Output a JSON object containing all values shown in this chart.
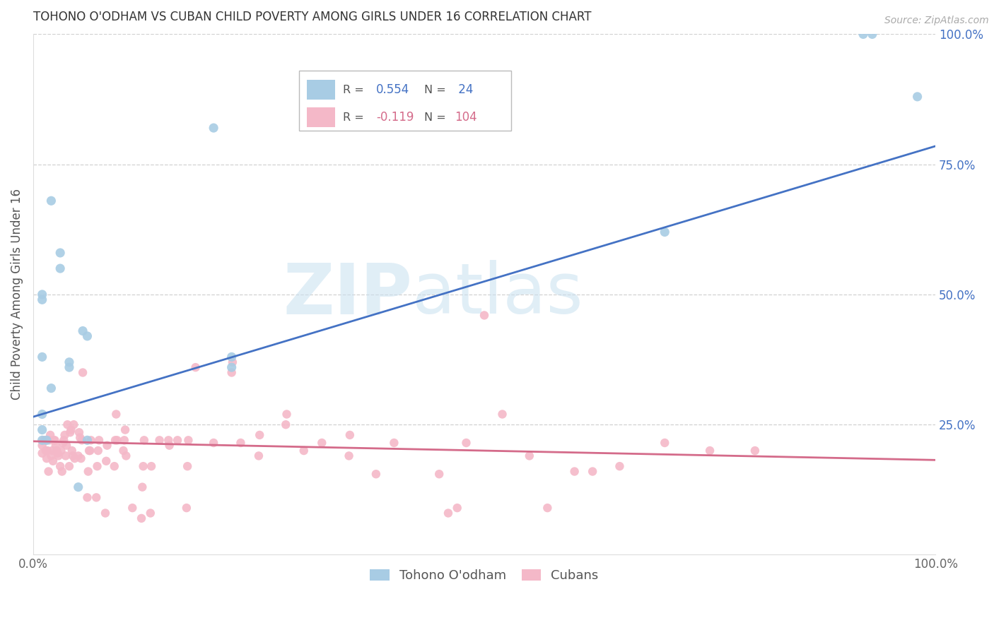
{
  "title": "TOHONO O'ODHAM VS CUBAN CHILD POVERTY AMONG GIRLS UNDER 16 CORRELATION CHART",
  "source": "Source: ZipAtlas.com",
  "ylabel": "Child Poverty Among Girls Under 16",
  "watermark": "ZIPatlas",
  "legend_label_blue": "Tohono O'odham",
  "legend_label_pink": "Cubans",
  "blue_color": "#a8cce4",
  "blue_line_color": "#4472c4",
  "pink_color": "#f4b8c8",
  "pink_line_color": "#d46b8a",
  "background_color": "#ffffff",
  "grid_color": "#cccccc",
  "xlim": [
    0,
    1
  ],
  "ylim": [
    0,
    1
  ],
  "xticks": [
    0.0,
    0.25,
    0.5,
    0.75,
    1.0
  ],
  "xticklabels": [
    "0.0%",
    "",
    "",
    "",
    "100.0%"
  ],
  "yticks_right": [
    0.25,
    0.5,
    0.75,
    1.0
  ],
  "yticklabels_right": [
    "25.0%",
    "50.0%",
    "75.0%",
    "100.0%"
  ],
  "blue_points": [
    [
      0.01,
      0.27
    ],
    [
      0.01,
      0.24
    ],
    [
      0.01,
      0.5
    ],
    [
      0.01,
      0.49
    ],
    [
      0.01,
      0.38
    ],
    [
      0.01,
      0.22
    ],
    [
      0.015,
      0.22
    ],
    [
      0.02,
      0.68
    ],
    [
      0.02,
      0.32
    ],
    [
      0.03,
      0.58
    ],
    [
      0.03,
      0.55
    ],
    [
      0.04,
      0.37
    ],
    [
      0.04,
      0.36
    ],
    [
      0.05,
      0.13
    ],
    [
      0.055,
      0.43
    ],
    [
      0.06,
      0.42
    ],
    [
      0.06,
      0.22
    ],
    [
      0.2,
      0.82
    ],
    [
      0.22,
      0.36
    ],
    [
      0.22,
      0.38
    ],
    [
      0.7,
      0.62
    ],
    [
      0.92,
      1.0
    ],
    [
      0.93,
      1.0
    ],
    [
      0.98,
      0.88
    ]
  ],
  "pink_points": [
    [
      0.01,
      0.195
    ],
    [
      0.01,
      0.21
    ],
    [
      0.012,
      0.22
    ],
    [
      0.013,
      0.22
    ],
    [
      0.014,
      0.2
    ],
    [
      0.015,
      0.185
    ],
    [
      0.016,
      0.2
    ],
    [
      0.017,
      0.16
    ],
    [
      0.018,
      0.22
    ],
    [
      0.019,
      0.23
    ],
    [
      0.02,
      0.19
    ],
    [
      0.021,
      0.2
    ],
    [
      0.022,
      0.18
    ],
    [
      0.023,
      0.22
    ],
    [
      0.024,
      0.22
    ],
    [
      0.025,
      0.21
    ],
    [
      0.026,
      0.2
    ],
    [
      0.027,
      0.195
    ],
    [
      0.028,
      0.19
    ],
    [
      0.03,
      0.17
    ],
    [
      0.031,
      0.2
    ],
    [
      0.032,
      0.16
    ],
    [
      0.033,
      0.215
    ],
    [
      0.034,
      0.22
    ],
    [
      0.035,
      0.23
    ],
    [
      0.036,
      0.19
    ],
    [
      0.037,
      0.21
    ],
    [
      0.038,
      0.25
    ],
    [
      0.04,
      0.17
    ],
    [
      0.041,
      0.235
    ],
    [
      0.042,
      0.24
    ],
    [
      0.043,
      0.2
    ],
    [
      0.044,
      0.19
    ],
    [
      0.045,
      0.25
    ],
    [
      0.046,
      0.185
    ],
    [
      0.05,
      0.19
    ],
    [
      0.051,
      0.235
    ],
    [
      0.052,
      0.225
    ],
    [
      0.053,
      0.185
    ],
    [
      0.054,
      0.22
    ],
    [
      0.055,
      0.35
    ],
    [
      0.06,
      0.11
    ],
    [
      0.061,
      0.16
    ],
    [
      0.062,
      0.2
    ],
    [
      0.063,
      0.2
    ],
    [
      0.064,
      0.22
    ],
    [
      0.07,
      0.11
    ],
    [
      0.071,
      0.17
    ],
    [
      0.072,
      0.2
    ],
    [
      0.073,
      0.22
    ],
    [
      0.08,
      0.08
    ],
    [
      0.081,
      0.18
    ],
    [
      0.082,
      0.21
    ],
    [
      0.09,
      0.17
    ],
    [
      0.091,
      0.22
    ],
    [
      0.092,
      0.27
    ],
    [
      0.093,
      0.22
    ],
    [
      0.1,
      0.2
    ],
    [
      0.101,
      0.22
    ],
    [
      0.102,
      0.24
    ],
    [
      0.103,
      0.19
    ],
    [
      0.11,
      0.09
    ],
    [
      0.12,
      0.07
    ],
    [
      0.121,
      0.13
    ],
    [
      0.122,
      0.17
    ],
    [
      0.123,
      0.22
    ],
    [
      0.13,
      0.08
    ],
    [
      0.131,
      0.17
    ],
    [
      0.14,
      0.22
    ],
    [
      0.15,
      0.22
    ],
    [
      0.151,
      0.21
    ],
    [
      0.16,
      0.22
    ],
    [
      0.17,
      0.09
    ],
    [
      0.171,
      0.17
    ],
    [
      0.172,
      0.22
    ],
    [
      0.18,
      0.36
    ],
    [
      0.2,
      0.215
    ],
    [
      0.22,
      0.35
    ],
    [
      0.221,
      0.37
    ],
    [
      0.23,
      0.215
    ],
    [
      0.25,
      0.19
    ],
    [
      0.251,
      0.23
    ],
    [
      0.28,
      0.25
    ],
    [
      0.281,
      0.27
    ],
    [
      0.3,
      0.2
    ],
    [
      0.32,
      0.215
    ],
    [
      0.35,
      0.19
    ],
    [
      0.351,
      0.23
    ],
    [
      0.38,
      0.155
    ],
    [
      0.4,
      0.215
    ],
    [
      0.45,
      0.155
    ],
    [
      0.46,
      0.08
    ],
    [
      0.47,
      0.09
    ],
    [
      0.48,
      0.215
    ],
    [
      0.5,
      0.46
    ],
    [
      0.52,
      0.27
    ],
    [
      0.55,
      0.19
    ],
    [
      0.57,
      0.09
    ],
    [
      0.6,
      0.16
    ],
    [
      0.62,
      0.16
    ],
    [
      0.65,
      0.17
    ],
    [
      0.7,
      0.215
    ],
    [
      0.75,
      0.2
    ],
    [
      0.8,
      0.2
    ]
  ],
  "blue_line": {
    "x0": 0.0,
    "y0": 0.265,
    "x1": 1.0,
    "y1": 0.785
  },
  "pink_line": {
    "x0": 0.0,
    "y0": 0.218,
    "x1": 1.0,
    "y1": 0.182
  }
}
